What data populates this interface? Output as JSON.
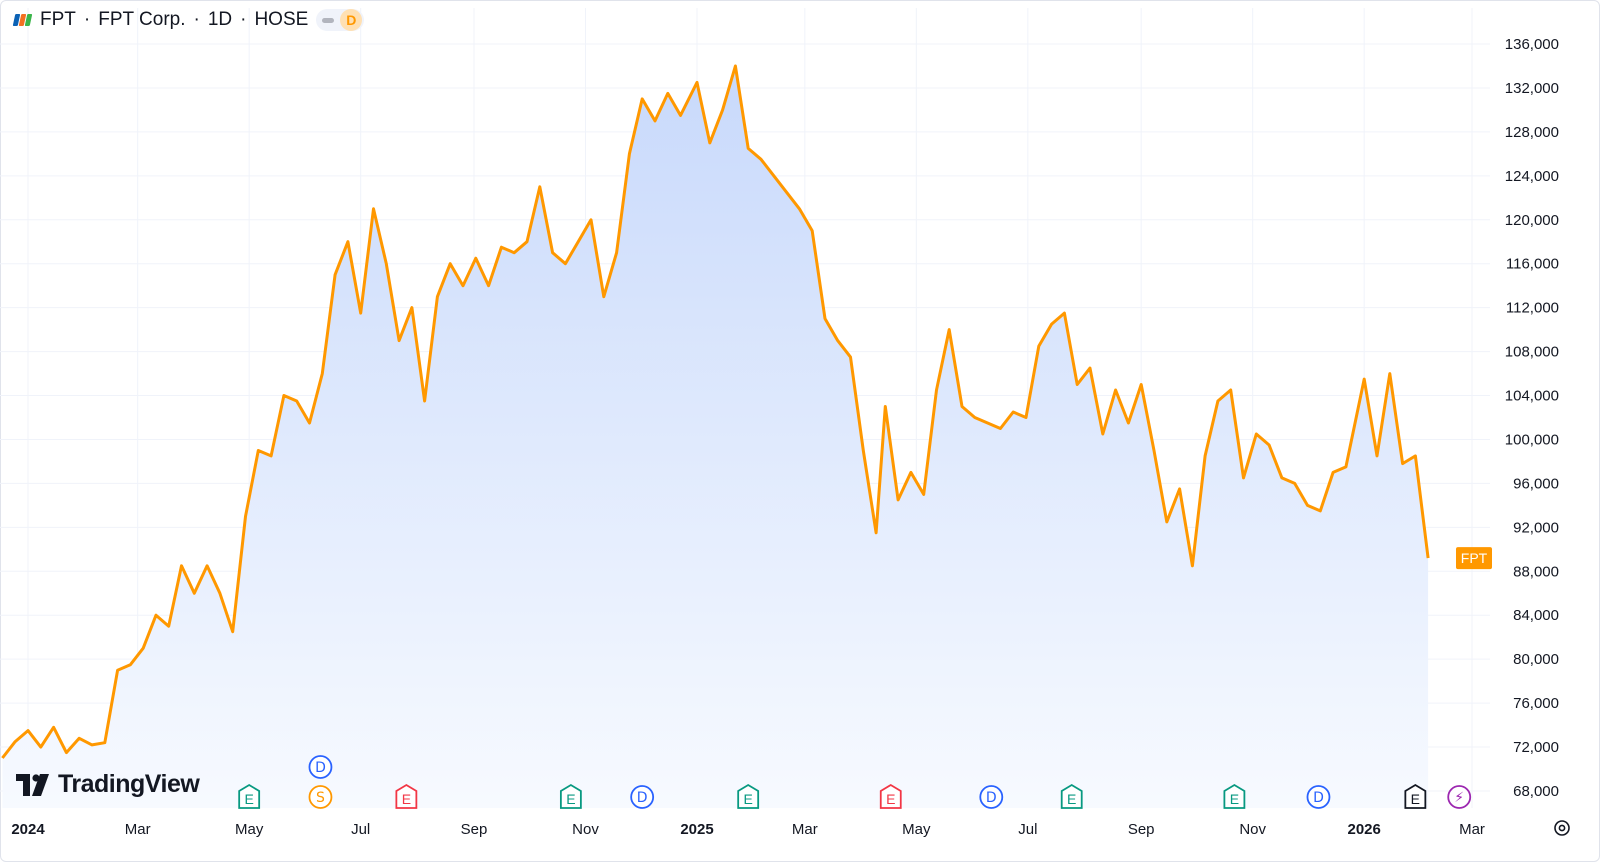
{
  "header": {
    "symbol": "FPT",
    "company": "FPT Corp.",
    "interval": "1D",
    "exchange": "HOSE",
    "separator": "·",
    "badge": "D"
  },
  "branding": {
    "name": "TradingView"
  },
  "colors": {
    "line": "#ff9800",
    "area_top": "#c8d9fb",
    "area_bottom": "#f7faff",
    "grid": "#f0f3fa",
    "earnings_green": "#089981",
    "earnings_red": "#f23645",
    "dividend_blue": "#2962ff",
    "split_orange": "#ff9800",
    "future_gray": "#131722",
    "purple": "#9c27b0"
  },
  "chart_data": {
    "type": "area",
    "ylim": [
      68000,
      136000
    ],
    "y_ticks": [
      "136,000",
      "132,000",
      "128,000",
      "124,000",
      "120,000",
      "116,000",
      "112,000",
      "108,000",
      "104,000",
      "100,000",
      "96,000",
      "92,000",
      "88,000",
      "84,000",
      "80,000",
      "76,000",
      "72,000",
      "68,000"
    ],
    "x_ticks": [
      {
        "date": "2024-01-01",
        "label": "2024",
        "bold": true
      },
      {
        "date": "2024-03-01",
        "label": "Mar"
      },
      {
        "date": "2024-05-01",
        "label": "May"
      },
      {
        "date": "2024-07-01",
        "label": "Jul"
      },
      {
        "date": "2024-09-01",
        "label": "Sep"
      },
      {
        "date": "2024-11-01",
        "label": "Nov"
      },
      {
        "date": "2025-01-01",
        "label": "2025",
        "bold": true
      },
      {
        "date": "2025-03-01",
        "label": "Mar"
      },
      {
        "date": "2025-05-01",
        "label": "May"
      },
      {
        "date": "2025-07-01",
        "label": "Jul"
      },
      {
        "date": "2025-09-01",
        "label": "Sep"
      },
      {
        "date": "2025-11-01",
        "label": "Nov"
      },
      {
        "date": "2026-01-01",
        "label": "2026",
        "bold": true
      },
      {
        "date": "2026-03-01",
        "label": "Mar"
      }
    ],
    "series": [
      {
        "name": "FPT",
        "points": [
          [
            "2023-12-18",
            71000
          ],
          [
            "2023-12-25",
            72500
          ],
          [
            "2024-01-01",
            73500
          ],
          [
            "2024-01-08",
            72000
          ],
          [
            "2024-01-15",
            73800
          ],
          [
            "2024-01-22",
            71500
          ],
          [
            "2024-01-29",
            72800
          ],
          [
            "2024-02-05",
            72200
          ],
          [
            "2024-02-12",
            72400
          ],
          [
            "2024-02-19",
            79000
          ],
          [
            "2024-02-26",
            79500
          ],
          [
            "2024-03-04",
            81000
          ],
          [
            "2024-03-11",
            84000
          ],
          [
            "2024-03-18",
            83000
          ],
          [
            "2024-03-25",
            88500
          ],
          [
            "2024-04-01",
            86000
          ],
          [
            "2024-04-08",
            88500
          ],
          [
            "2024-04-15",
            86000
          ],
          [
            "2024-04-22",
            82500
          ],
          [
            "2024-04-29",
            93000
          ],
          [
            "2024-05-06",
            99000
          ],
          [
            "2024-05-13",
            98500
          ],
          [
            "2024-05-20",
            104000
          ],
          [
            "2024-05-27",
            103500
          ],
          [
            "2024-06-03",
            101500
          ],
          [
            "2024-06-10",
            106000
          ],
          [
            "2024-06-17",
            115000
          ],
          [
            "2024-06-24",
            118000
          ],
          [
            "2024-07-01",
            111500
          ],
          [
            "2024-07-08",
            121000
          ],
          [
            "2024-07-15",
            116000
          ],
          [
            "2024-07-22",
            109000
          ],
          [
            "2024-07-29",
            112000
          ],
          [
            "2024-08-05",
            103500
          ],
          [
            "2024-08-12",
            113000
          ],
          [
            "2024-08-19",
            116000
          ],
          [
            "2024-08-26",
            114000
          ],
          [
            "2024-09-02",
            116500
          ],
          [
            "2024-09-09",
            114000
          ],
          [
            "2024-09-16",
            117500
          ],
          [
            "2024-09-23",
            117000
          ],
          [
            "2024-09-30",
            118000
          ],
          [
            "2024-10-07",
            123000
          ],
          [
            "2024-10-14",
            117000
          ],
          [
            "2024-10-21",
            116000
          ],
          [
            "2024-10-28",
            118000
          ],
          [
            "2024-11-04",
            120000
          ],
          [
            "2024-11-11",
            113000
          ],
          [
            "2024-11-18",
            117000
          ],
          [
            "2024-11-25",
            126000
          ],
          [
            "2024-12-02",
            131000
          ],
          [
            "2024-12-09",
            129000
          ],
          [
            "2024-12-16",
            131500
          ],
          [
            "2024-12-23",
            129500
          ],
          [
            "2025-01-01",
            132500
          ],
          [
            "2025-01-08",
            127000
          ],
          [
            "2025-01-15",
            130000
          ],
          [
            "2025-01-22",
            134000
          ],
          [
            "2025-01-29",
            126500
          ],
          [
            "2025-02-05",
            125500
          ],
          [
            "2025-02-12",
            124000
          ],
          [
            "2025-02-19",
            122500
          ],
          [
            "2025-02-26",
            121000
          ],
          [
            "2025-03-05",
            119000
          ],
          [
            "2025-03-12",
            111000
          ],
          [
            "2025-03-19",
            109000
          ],
          [
            "2025-03-26",
            107500
          ],
          [
            "2025-04-02",
            99000
          ],
          [
            "2025-04-09",
            91500
          ],
          [
            "2025-04-14",
            103000
          ],
          [
            "2025-04-21",
            94500
          ],
          [
            "2025-04-28",
            97000
          ],
          [
            "2025-05-05",
            95000
          ],
          [
            "2025-05-12",
            104500
          ],
          [
            "2025-05-19",
            110000
          ],
          [
            "2025-05-26",
            103000
          ],
          [
            "2025-06-02",
            102000
          ],
          [
            "2025-06-09",
            101500
          ],
          [
            "2025-06-16",
            101000
          ],
          [
            "2025-06-23",
            102500
          ],
          [
            "2025-06-30",
            102000
          ],
          [
            "2025-07-07",
            108500
          ],
          [
            "2025-07-14",
            110500
          ],
          [
            "2025-07-21",
            111500
          ],
          [
            "2025-07-28",
            105000
          ],
          [
            "2025-08-04",
            106500
          ],
          [
            "2025-08-11",
            100500
          ],
          [
            "2025-08-18",
            104500
          ],
          [
            "2025-08-25",
            101500
          ],
          [
            "2025-09-01",
            105000
          ],
          [
            "2025-09-08",
            99000
          ],
          [
            "2025-09-15",
            92500
          ],
          [
            "2025-09-22",
            95500
          ],
          [
            "2025-09-29",
            88500
          ],
          [
            "2025-10-06",
            98500
          ],
          [
            "2025-10-13",
            103500
          ],
          [
            "2025-10-20",
            104500
          ],
          [
            "2025-10-27",
            96500
          ],
          [
            "2025-11-03",
            100500
          ],
          [
            "2025-11-10",
            99500
          ],
          [
            "2025-11-17",
            96500
          ],
          [
            "2025-11-24",
            96000
          ],
          [
            "2025-12-01",
            94000
          ],
          [
            "2025-12-08",
            93500
          ],
          [
            "2025-12-15",
            97000
          ],
          [
            "2025-12-22",
            97500
          ],
          [
            "2026-01-01",
            105500
          ],
          [
            "2026-01-08",
            98500
          ],
          [
            "2026-01-15",
            106000
          ],
          [
            "2026-01-22",
            97800
          ],
          [
            "2026-01-29",
            98500
          ],
          [
            "2026-02-05",
            89200
          ]
        ],
        "last_label": "FPT"
      }
    ],
    "events": [
      {
        "date": "2024-05-01",
        "type": "E",
        "color": "#089981",
        "row": 1
      },
      {
        "date": "2024-06-09",
        "type": "D",
        "color": "#2962ff",
        "row": 0
      },
      {
        "date": "2024-06-09",
        "type": "S",
        "color": "#ff9800",
        "row": 1
      },
      {
        "date": "2024-07-26",
        "type": "E",
        "color": "#f23645",
        "row": 1
      },
      {
        "date": "2024-10-24",
        "type": "E",
        "color": "#089981",
        "row": 1
      },
      {
        "date": "2024-12-02",
        "type": "D",
        "color": "#2962ff",
        "row": 1
      },
      {
        "date": "2025-01-29",
        "type": "E",
        "color": "#089981",
        "row": 1
      },
      {
        "date": "2025-04-17",
        "type": "E",
        "color": "#f23645",
        "row": 1
      },
      {
        "date": "2025-06-11",
        "type": "D",
        "color": "#2962ff",
        "row": 1
      },
      {
        "date": "2025-07-25",
        "type": "E",
        "color": "#089981",
        "row": 1
      },
      {
        "date": "2025-10-22",
        "type": "E",
        "color": "#089981",
        "row": 1
      },
      {
        "date": "2025-12-07",
        "type": "D",
        "color": "#2962ff",
        "row": 1
      },
      {
        "date": "2026-01-29",
        "type": "E",
        "color": "#131722",
        "row": 1
      },
      {
        "date": "2026-02-22",
        "type": "⚡",
        "color": "#9c27b0",
        "row": 1
      }
    ]
  }
}
